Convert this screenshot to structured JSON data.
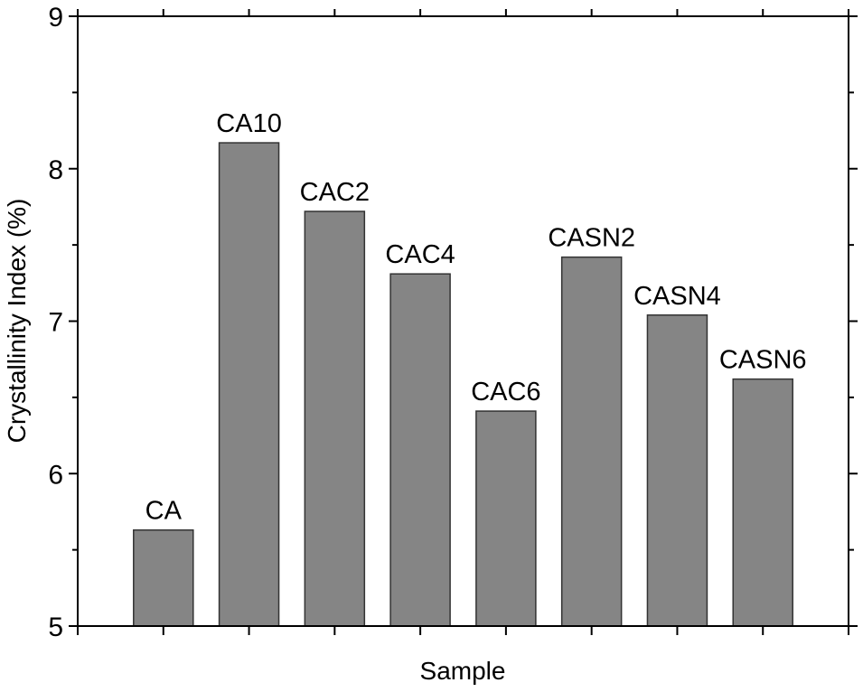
{
  "chart_data": {
    "type": "bar",
    "title": "",
    "xlabel": "Sample",
    "ylabel": "Crystallinity Index (%)",
    "categories": [
      "CA",
      "CA10",
      "CAC2",
      "CAC4",
      "CAC6",
      "CASN2",
      "CASN4",
      "CASN6"
    ],
    "values": [
      5.63,
      8.17,
      7.72,
      7.31,
      6.41,
      7.42,
      7.04,
      6.62
    ],
    "ylim": [
      5,
      9
    ],
    "yticks": [
      "5",
      "6",
      "7",
      "8",
      "9"
    ],
    "grid": false,
    "legend": "none",
    "bar_color": "#858585",
    "bar_stroke": "#333333"
  }
}
